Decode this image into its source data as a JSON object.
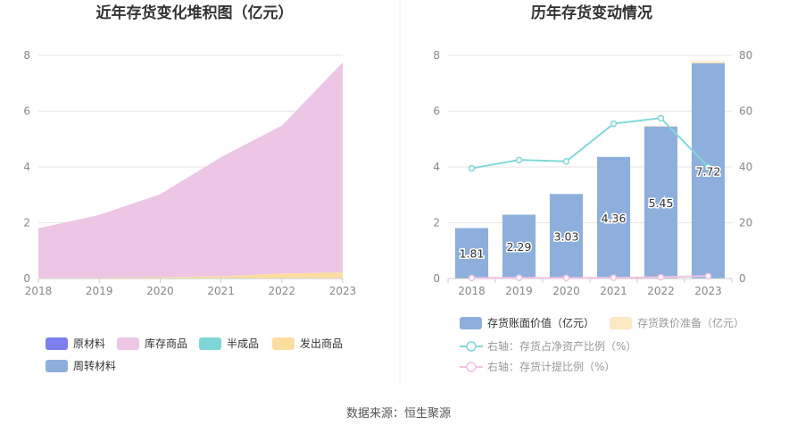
{
  "source_label": "数据来源：恒生聚源",
  "colors": {
    "raw_material": "#7b7ff0",
    "inventory_goods": "#ecc6e4",
    "semi_finished": "#7fd6d6",
    "shipped_goods": "#fcdda0",
    "turnover_material": "#8eafdc",
    "book_value_bar": "#8eafdc",
    "impairment_bar": "#fde8c4",
    "ratio_line": "#82d8d8",
    "provision_line": "#f0c2e4",
    "grid": "#e6e6e6",
    "axis": "#cccccc"
  },
  "chart_data": [
    {
      "type": "area",
      "title": "近年存货变化堆积图（亿元）",
      "x": [
        "2018",
        "2019",
        "2020",
        "2021",
        "2022",
        "2023"
      ],
      "ylim": [
        0,
        8
      ],
      "yticks": [
        0,
        2,
        4,
        6,
        8
      ],
      "series": [
        {
          "name": "原材料",
          "color_key": "raw_material",
          "values": [
            0.0,
            0.0,
            0.0,
            0.0,
            0.0,
            0.0
          ]
        },
        {
          "name": "半成品",
          "color_key": "semi_finished",
          "values": [
            0.0,
            0.0,
            0.0,
            0.0,
            0.0,
            0.0
          ]
        },
        {
          "name": "发出商品",
          "color_key": "shipped_goods",
          "values": [
            0.02,
            0.03,
            0.05,
            0.08,
            0.18,
            0.22
          ]
        },
        {
          "name": "周转材料",
          "color_key": "turnover_material",
          "values": [
            0.0,
            0.0,
            0.0,
            0.0,
            0.0,
            0.0
          ]
        },
        {
          "name": "库存商品",
          "color_key": "inventory_goods",
          "values": [
            1.78,
            2.25,
            2.97,
            4.27,
            5.3,
            7.53
          ]
        }
      ],
      "legend": [
        "原材料",
        "库存商品",
        "半成品",
        "发出商品",
        "周转材料"
      ],
      "legend_colors": [
        "raw_material",
        "inventory_goods",
        "semi_finished",
        "shipped_goods",
        "turnover_material"
      ],
      "grid": true,
      "legend_position": "bottom-left"
    },
    {
      "type": "bar",
      "title": "历年存货变动情况",
      "categories": [
        "2018",
        "2019",
        "2020",
        "2021",
        "2022",
        "2023"
      ],
      "ylim_left": [
        0,
        8
      ],
      "yticks_left": [
        0,
        2,
        4,
        6,
        8
      ],
      "ylim_right": [
        0,
        80
      ],
      "yticks_right": [
        0,
        20,
        40,
        60,
        80
      ],
      "series": [
        {
          "name": "存货账面价值（亿元）",
          "kind": "bar",
          "axis": "left",
          "color_key": "book_value_bar",
          "values": [
            1.81,
            2.29,
            3.03,
            4.36,
            5.45,
            7.72
          ],
          "labels": [
            "1.81",
            "2.29",
            "3.03",
            "4.36",
            "5.45",
            "7.72"
          ]
        },
        {
          "name": "存货跌价准备（亿元）",
          "kind": "bar",
          "axis": "left",
          "color_key": "impairment_bar",
          "values": [
            0.0,
            0.0,
            0.0,
            0.0,
            0.03,
            0.07
          ]
        },
        {
          "name": "右轴：存货占净资产比例（%）",
          "kind": "line",
          "axis": "right",
          "color_key": "ratio_line",
          "values": [
            39.5,
            42.5,
            42.0,
            55.5,
            57.5,
            40.0
          ]
        },
        {
          "name": "右轴：存货计提比例（%）",
          "kind": "line",
          "axis": "right",
          "color_key": "provision_line",
          "values": [
            0.2,
            0.3,
            0.2,
            0.3,
            0.5,
            0.9
          ]
        }
      ],
      "grid": true,
      "legend_position": "bottom"
    }
  ]
}
